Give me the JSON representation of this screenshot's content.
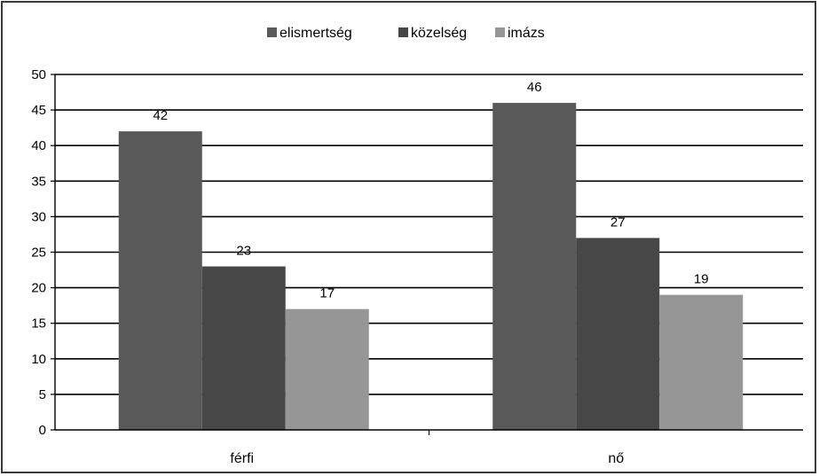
{
  "chart_data": {
    "type": "bar",
    "categories": [
      "férfi",
      "nő"
    ],
    "series": [
      {
        "name": "elismertség",
        "values": [
          42,
          46
        ],
        "color": "#595959"
      },
      {
        "name": "közelség",
        "values": [
          23,
          27
        ],
        "color": "#474747"
      },
      {
        "name": "imázs",
        "values": [
          17,
          19
        ],
        "color": "#969696"
      }
    ],
    "data_labels": [
      [
        "42",
        "46"
      ],
      [
        "23",
        "27"
      ],
      [
        "17",
        "19"
      ]
    ],
    "ylim": [
      0,
      50
    ],
    "yticks": [
      0,
      5,
      10,
      15,
      20,
      25,
      30,
      35,
      40,
      45,
      50
    ],
    "grid": true,
    "legend_position": "top-center",
    "title": "",
    "xlabel": "",
    "ylabel": ""
  }
}
